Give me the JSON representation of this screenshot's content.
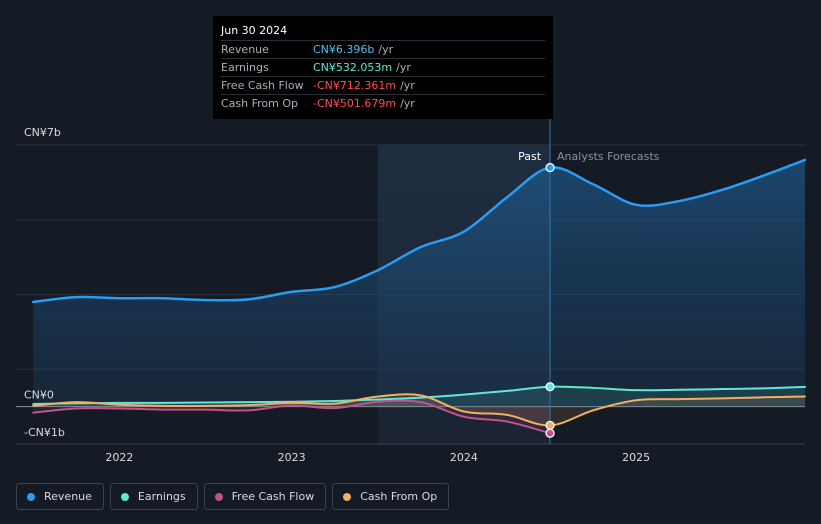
{
  "tooltip": {
    "date": "Jun 30 2024",
    "rows": [
      {
        "label": "Revenue",
        "value": "CN¥6.396b",
        "unit": "/yr",
        "color": "#4fc3f7"
      },
      {
        "label": "Earnings",
        "value": "CN¥532.053m",
        "unit": "/yr",
        "color": "#5ee8d8"
      },
      {
        "label": "Free Cash Flow",
        "value": "-CN¥712.361m",
        "unit": "/yr",
        "color": "#ff4d55"
      },
      {
        "label": "Cash From Op",
        "value": "-CN¥501.679m",
        "unit": "/yr",
        "color": "#ff4d55"
      }
    ]
  },
  "legend": [
    {
      "label": "Revenue",
      "color": "#2b9cf2"
    },
    {
      "label": "Earnings",
      "color": "#5ee8d8"
    },
    {
      "label": "Free Cash Flow",
      "color": "#c4508e"
    },
    {
      "label": "Cash From Op",
      "color": "#f0b060"
    }
  ],
  "chart_data": {
    "type": "line",
    "y_unit": "CN¥ billions",
    "ylim": [
      -1,
      7
    ],
    "y_tick_labels": [
      {
        "value": 7,
        "label": "CN¥7b"
      },
      {
        "value": 0,
        "label": "CN¥0"
      },
      {
        "value": -1,
        "label": "-CN¥1b"
      }
    ],
    "xlim": [
      2021.4,
      2025.98
    ],
    "x_ticks": [
      {
        "value": 2022,
        "label": "2022"
      },
      {
        "value": 2023,
        "label": "2023"
      },
      {
        "value": 2024,
        "label": "2024"
      },
      {
        "value": 2025,
        "label": "2025"
      }
    ],
    "past_label": "Past",
    "forecast_label": "Analysts Forecasts",
    "past_end": 2024.5,
    "highlight_start": 2023.5,
    "series": [
      {
        "name": "Revenue",
        "color": "#2b9cf2",
        "points": [
          [
            2021.5,
            2.8
          ],
          [
            2021.75,
            2.93
          ],
          [
            2022.0,
            2.9
          ],
          [
            2022.25,
            2.9
          ],
          [
            2022.5,
            2.85
          ],
          [
            2022.75,
            2.87
          ],
          [
            2023.0,
            3.07
          ],
          [
            2023.25,
            3.2
          ],
          [
            2023.5,
            3.65
          ],
          [
            2023.75,
            4.27
          ],
          [
            2024.0,
            4.68
          ],
          [
            2024.25,
            5.6
          ],
          [
            2024.5,
            6.396
          ],
          [
            2024.75,
            5.95
          ],
          [
            2025.0,
            5.4
          ],
          [
            2025.25,
            5.5
          ],
          [
            2025.5,
            5.8
          ],
          [
            2025.75,
            6.2
          ],
          [
            2025.98,
            6.6
          ]
        ]
      },
      {
        "name": "Earnings",
        "color": "#5ee8d8",
        "points": [
          [
            2021.5,
            0.07
          ],
          [
            2021.75,
            0.09
          ],
          [
            2022.0,
            0.1
          ],
          [
            2022.25,
            0.1
          ],
          [
            2022.5,
            0.11
          ],
          [
            2022.75,
            0.12
          ],
          [
            2023.0,
            0.13
          ],
          [
            2023.25,
            0.15
          ],
          [
            2023.5,
            0.19
          ],
          [
            2023.75,
            0.24
          ],
          [
            2024.0,
            0.32
          ],
          [
            2024.25,
            0.42
          ],
          [
            2024.5,
            0.532
          ],
          [
            2024.75,
            0.5
          ],
          [
            2025.0,
            0.44
          ],
          [
            2025.25,
            0.45
          ],
          [
            2025.5,
            0.47
          ],
          [
            2025.75,
            0.49
          ],
          [
            2025.98,
            0.53
          ]
        ]
      },
      {
        "name": "Free Cash Flow",
        "color": "#c4508e",
        "points": [
          [
            2021.5,
            -0.16
          ],
          [
            2021.75,
            -0.05
          ],
          [
            2022.0,
            -0.05
          ],
          [
            2022.25,
            -0.08
          ],
          [
            2022.5,
            -0.08
          ],
          [
            2022.75,
            -0.1
          ],
          [
            2023.0,
            0.03
          ],
          [
            2023.25,
            -0.04
          ],
          [
            2023.5,
            0.13
          ],
          [
            2023.75,
            0.12
          ],
          [
            2024.0,
            -0.27
          ],
          [
            2024.25,
            -0.4
          ],
          [
            2024.5,
            -0.712
          ]
        ]
      },
      {
        "name": "Cash From Op",
        "color": "#f0b060",
        "points": [
          [
            2021.5,
            0.02
          ],
          [
            2021.75,
            0.12
          ],
          [
            2022.0,
            0.05
          ],
          [
            2022.25,
            0.02
          ],
          [
            2022.5,
            0.02
          ],
          [
            2022.75,
            0.04
          ],
          [
            2023.0,
            0.1
          ],
          [
            2023.25,
            0.08
          ],
          [
            2023.5,
            0.27
          ],
          [
            2023.75,
            0.3
          ],
          [
            2024.0,
            -0.13
          ],
          [
            2024.25,
            -0.22
          ],
          [
            2024.5,
            -0.502
          ],
          [
            2024.75,
            -0.1
          ],
          [
            2025.0,
            0.17
          ],
          [
            2025.25,
            0.2
          ],
          [
            2025.5,
            0.22
          ],
          [
            2025.75,
            0.25
          ],
          [
            2025.98,
            0.27
          ]
        ]
      }
    ]
  }
}
